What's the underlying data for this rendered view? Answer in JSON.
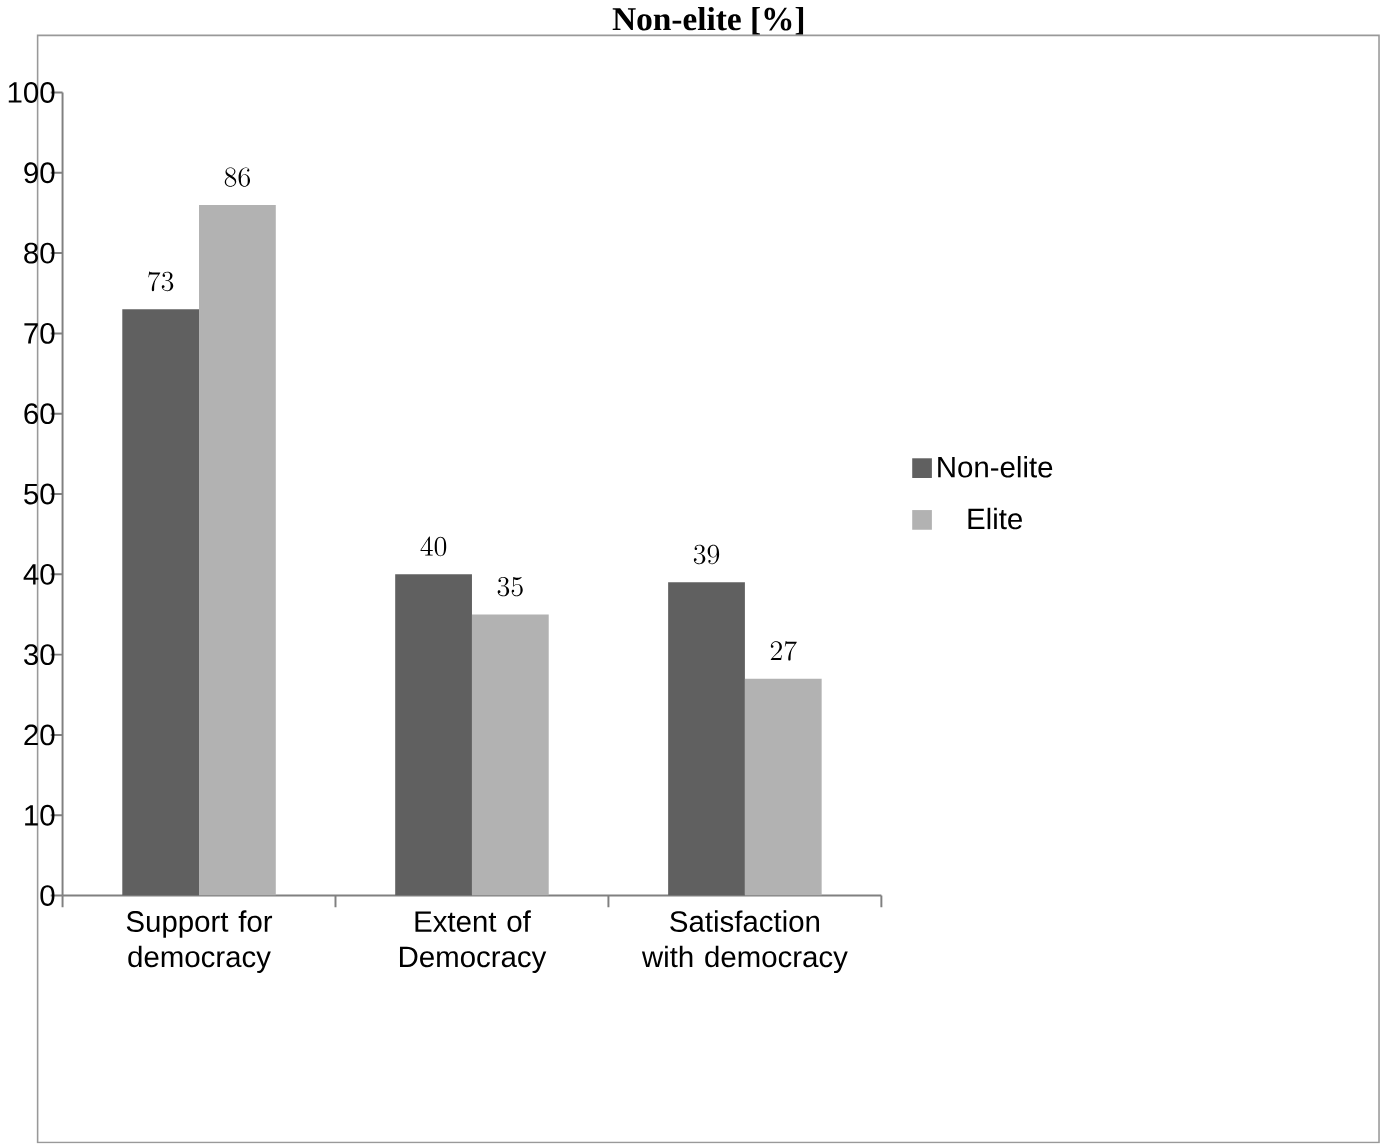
{
  "chart_data": {
    "type": "bar",
    "title": "Non-elite [%]",
    "categories": [
      "Support for democracy",
      "Extent of Democracy",
      "Satisfaction with democracy"
    ],
    "series": [
      {
        "name": "Non-elite",
        "color": "#606060",
        "values": [
          73,
          40,
          39
        ]
      },
      {
        "name": "Elite",
        "color": "#b2b2b2",
        "values": [
          86,
          35,
          27
        ]
      }
    ],
    "ylim": [
      0,
      100
    ],
    "yticks": [
      0,
      10,
      20,
      30,
      40,
      50,
      60,
      70,
      80,
      90,
      100
    ],
    "data_labels": true,
    "legend": "right",
    "grid": false
  }
}
